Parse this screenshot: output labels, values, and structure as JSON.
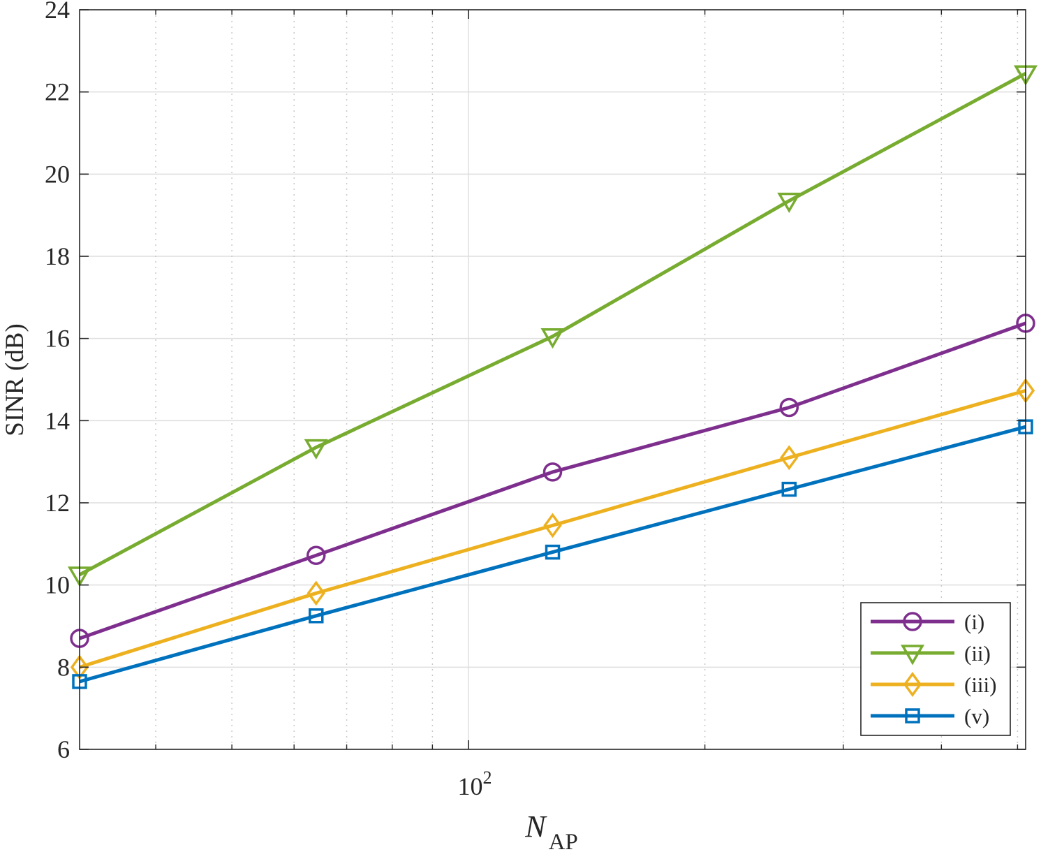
{
  "chart_data": {
    "type": "line",
    "xscale": "log",
    "xlabel": {
      "main": "N",
      "subscript": "AP"
    },
    "ylabel": "SINR (dB)",
    "xlim": [
      32,
      512
    ],
    "ylim": [
      6,
      24
    ],
    "yticks": [
      6,
      8,
      10,
      12,
      14,
      16,
      18,
      20,
      22,
      24
    ],
    "xtick_major": {
      "value": 100,
      "base": "10",
      "exponent": "2"
    },
    "x_minor_ticks": [
      40,
      50,
      60,
      70,
      80,
      90,
      200,
      300,
      400,
      500
    ],
    "grid": true,
    "x": [
      32,
      64,
      128,
      256,
      512
    ],
    "series": [
      {
        "name": "(i)",
        "marker": "circle",
        "color": "#7E2F8E",
        "values": [
          8.7,
          10.72,
          12.75,
          14.32,
          16.37
        ]
      },
      {
        "name": "(ii)",
        "marker": "triangle-down",
        "color": "#77AC30",
        "values": [
          10.25,
          13.35,
          16.05,
          19.35,
          22.45
        ]
      },
      {
        "name": "(iii)",
        "marker": "diamond",
        "color": "#EDB120",
        "values": [
          8.0,
          9.8,
          11.45,
          13.1,
          14.73
        ]
      },
      {
        "name": "(v)",
        "marker": "square",
        "color": "#0072BD",
        "values": [
          7.65,
          9.25,
          10.8,
          12.33,
          13.85
        ]
      }
    ],
    "legend": {
      "position": "bottom-right"
    }
  }
}
